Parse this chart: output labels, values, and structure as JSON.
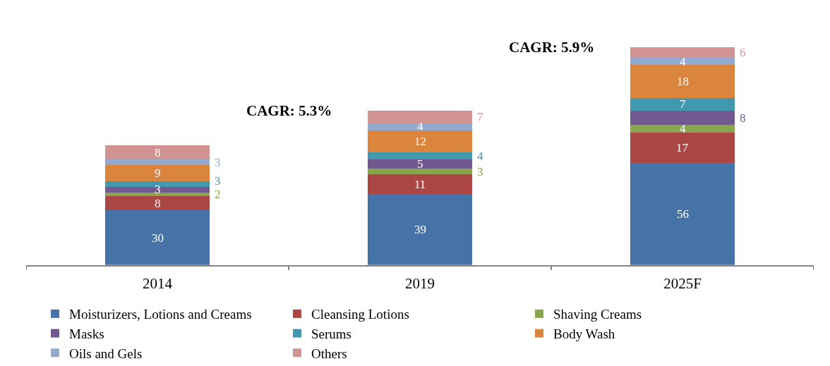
{
  "chart_data": {
    "type": "bar",
    "stacked": true,
    "categories": [
      "2014",
      "2019",
      "2025F"
    ],
    "series": [
      {
        "name": "Moisturizers, Lotions and Creams",
        "color": "#4572a7",
        "values": [
          30,
          39,
          56
        ]
      },
      {
        "name": "Cleansing Lotions",
        "color": "#aa4643",
        "values": [
          8,
          11,
          17
        ]
      },
      {
        "name": "Shaving Creams",
        "color": "#89a54e",
        "values": [
          2,
          3,
          4
        ]
      },
      {
        "name": "Masks",
        "color": "#71588f",
        "values": [
          3,
          5,
          8
        ]
      },
      {
        "name": "Serums",
        "color": "#4198af",
        "values": [
          3,
          4,
          7
        ]
      },
      {
        "name": "Body Wash",
        "color": "#db843d",
        "values": [
          9,
          12,
          18
        ]
      },
      {
        "name": "Oils and Gels",
        "color": "#93a9cf",
        "values": [
          3,
          4,
          4
        ]
      },
      {
        "name": "Others",
        "color": "#d19392",
        "values": [
          8,
          7,
          6
        ]
      }
    ],
    "data_labels": true,
    "annotations": [
      "CAGR: 5.3%",
      "CAGR: 5.9%"
    ],
    "legend": "bottom",
    "tick_labels": "x"
  }
}
